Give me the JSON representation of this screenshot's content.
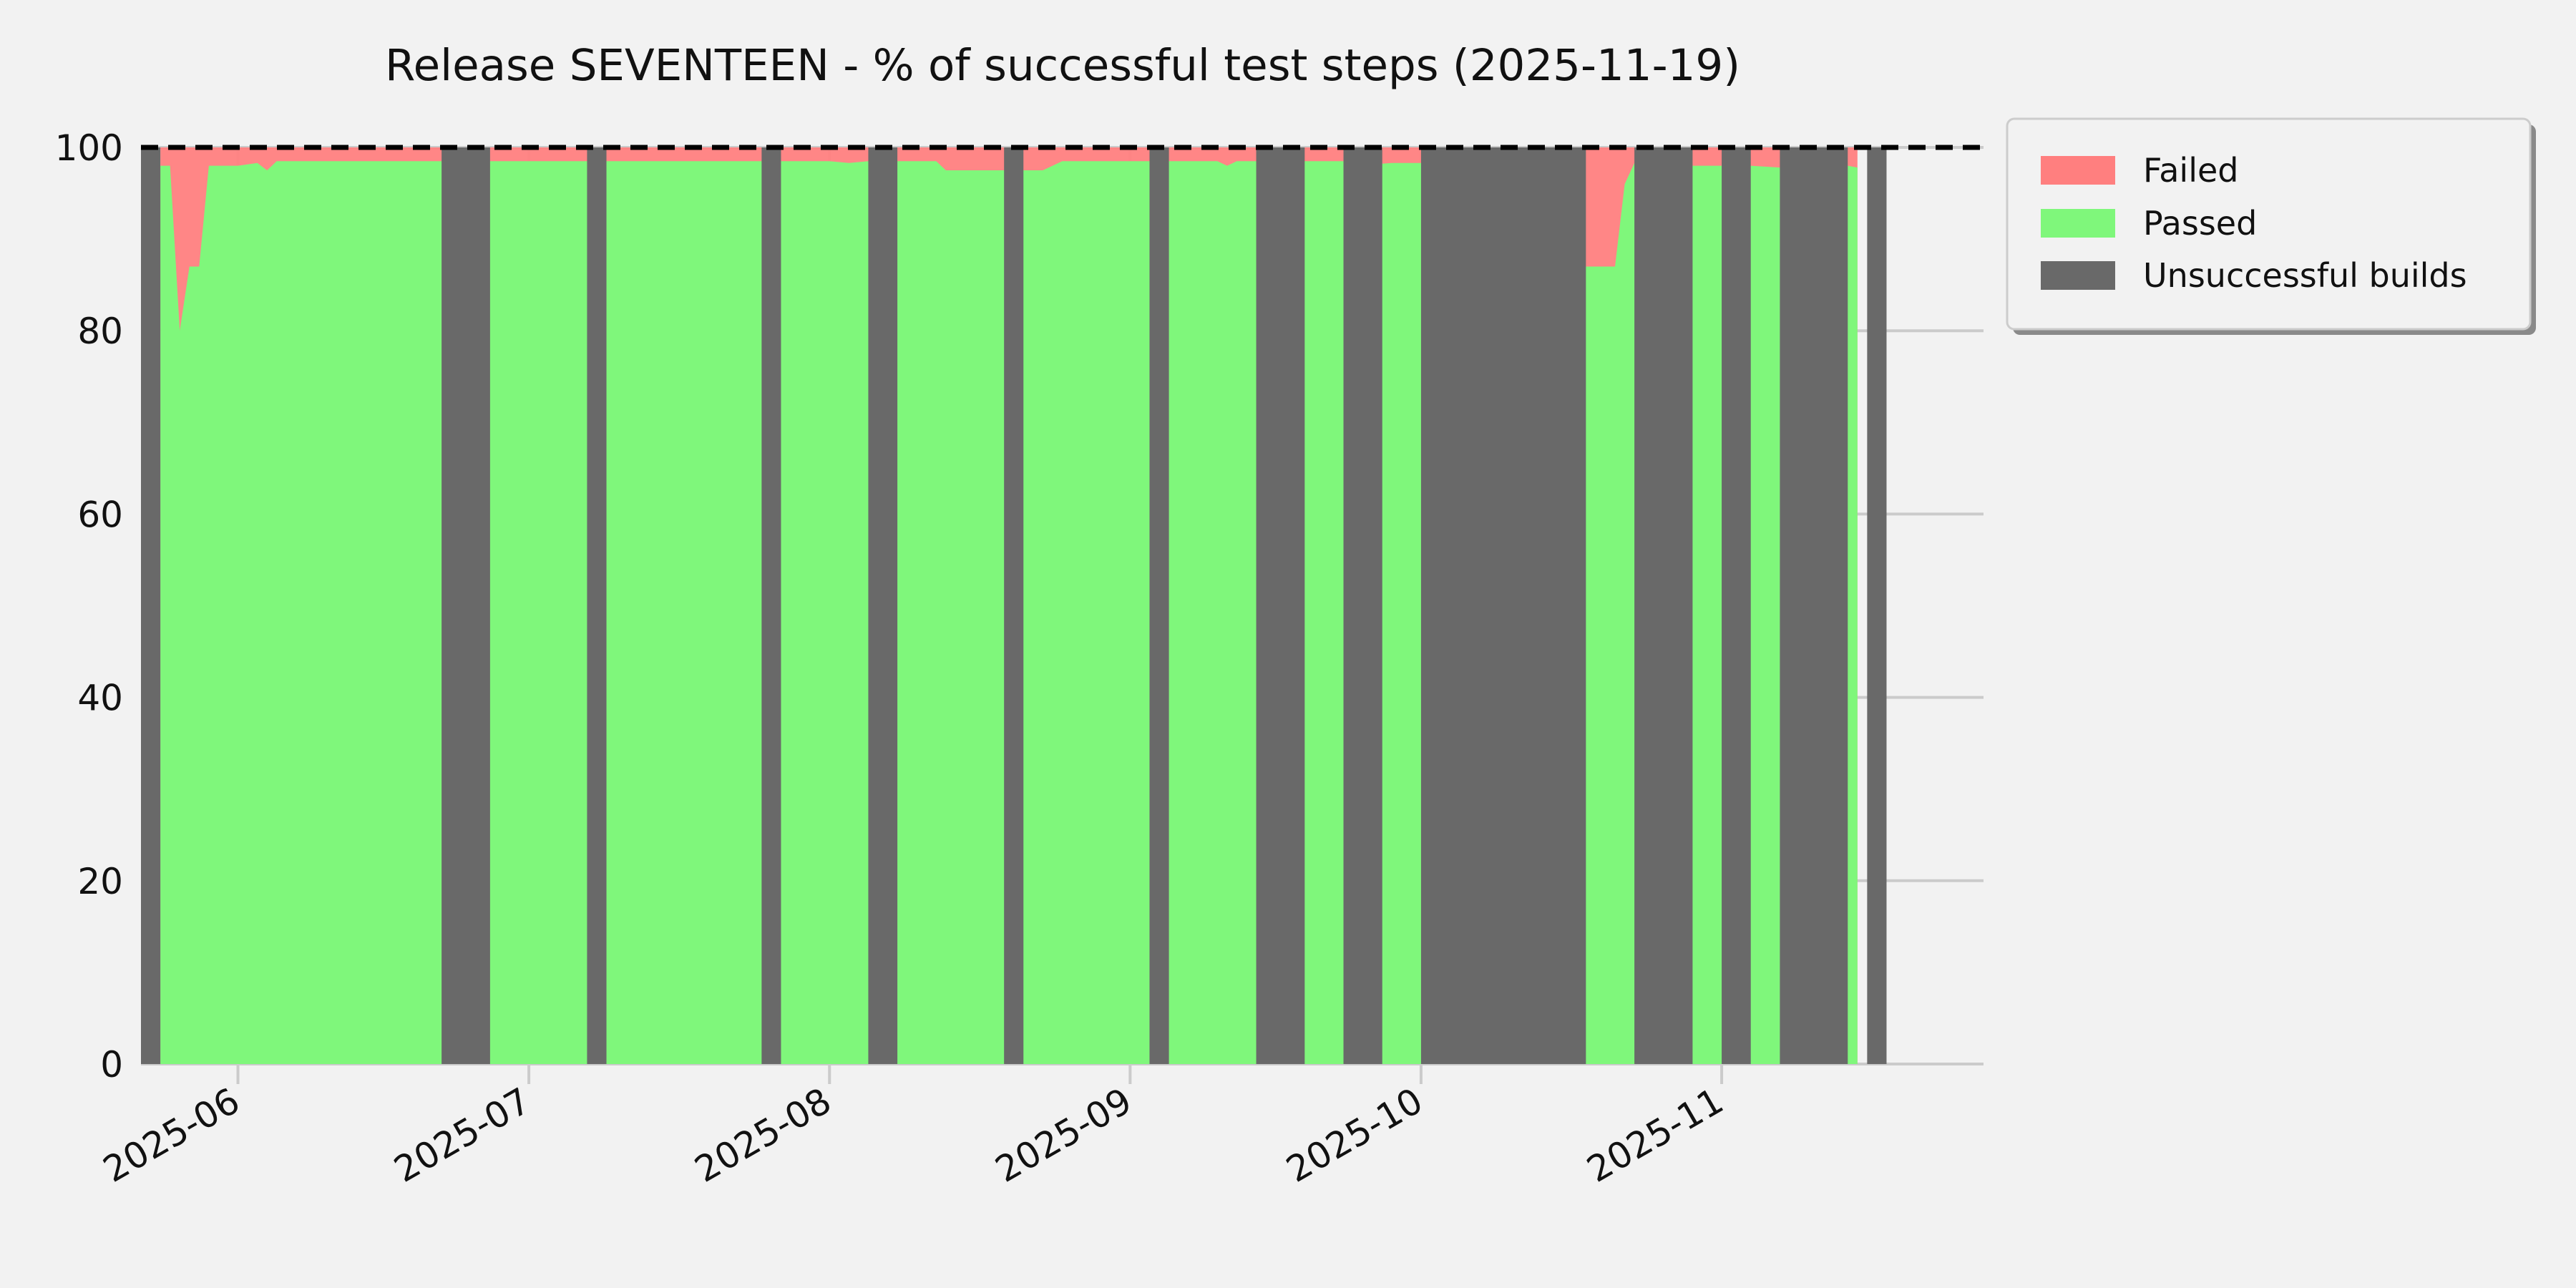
{
  "chart_data": {
    "type": "area",
    "title": "Release SEVENTEEN - % of successful test steps (2025-11-19)",
    "xlabel": "",
    "ylabel": "",
    "x_range": [
      "2025-05-22",
      "2025-11-28"
    ],
    "ylim": [
      0,
      100
    ],
    "yticks": [
      0,
      20,
      40,
      60,
      80,
      100
    ],
    "xticks": [
      "2025-06-01",
      "2025-07-01",
      "2025-08-01",
      "2025-09-01",
      "2025-10-01",
      "2025-11-01"
    ],
    "xtick_labels": [
      "2025-06",
      "2025-07",
      "2025-08",
      "2025-09",
      "2025-10",
      "2025-11"
    ],
    "reference_line": 100,
    "grid": true,
    "legend_position": "outside-top-right",
    "legend": [
      "Failed",
      "Passed",
      "Unsuccessful builds"
    ],
    "colors": {
      "failed": "#ff7f7f",
      "passed": "#7ff77b",
      "unsuccessful": "#696969",
      "background": "#f2f2f2",
      "grid": "#cbcbcb"
    },
    "passed_series": [
      [
        "2025-05-24",
        98
      ],
      [
        "2025-05-25",
        98
      ],
      [
        "2025-05-26",
        80
      ],
      [
        "2025-05-27",
        87
      ],
      [
        "2025-05-28",
        87
      ],
      [
        "2025-05-29",
        98
      ],
      [
        "2025-05-30",
        98
      ],
      [
        "2025-06-01",
        98
      ],
      [
        "2025-06-03",
        98.3
      ],
      [
        "2025-06-04",
        97.5
      ],
      [
        "2025-06-05",
        98.5
      ],
      [
        "2025-06-10",
        98.5
      ],
      [
        "2025-06-20",
        98.5
      ],
      [
        "2025-06-22",
        98.5
      ],
      [
        "2025-06-27",
        98.5
      ],
      [
        "2025-07-06",
        98.5
      ],
      [
        "2025-07-09",
        98.5
      ],
      [
        "2025-07-20",
        98.5
      ],
      [
        "2025-07-25",
        98.5
      ],
      [
        "2025-07-27",
        98.5
      ],
      [
        "2025-08-01",
        98.5
      ],
      [
        "2025-08-03",
        98.3
      ],
      [
        "2025-08-05",
        98.5
      ],
      [
        "2025-08-08",
        98.5
      ],
      [
        "2025-08-12",
        98.5
      ],
      [
        "2025-08-13",
        97.5
      ],
      [
        "2025-08-19",
        97.5
      ],
      [
        "2025-08-21",
        97.5
      ],
      [
        "2025-08-23",
        97.5
      ],
      [
        "2025-08-25",
        98.5
      ],
      [
        "2025-09-03",
        98.5
      ],
      [
        "2025-09-05",
        98.5
      ],
      [
        "2025-09-10",
        98.5
      ],
      [
        "2025-09-11",
        98.0
      ],
      [
        "2025-09-12",
        98.5
      ],
      [
        "2025-09-14",
        98.5
      ],
      [
        "2025-09-20",
        98.5
      ],
      [
        "2025-09-23",
        98.5
      ],
      [
        "2025-09-24",
        98.0
      ],
      [
        "2025-09-28",
        98.3
      ],
      [
        "2025-10-01",
        98.3
      ],
      [
        "2025-10-18",
        87
      ],
      [
        "2025-10-21",
        87
      ],
      [
        "2025-10-22",
        96
      ],
      [
        "2025-10-23",
        98.3
      ],
      [
        "2025-10-29",
        98
      ],
      [
        "2025-11-01",
        98
      ],
      [
        "2025-11-03",
        96
      ],
      [
        "2025-11-04",
        98
      ],
      [
        "2025-11-07",
        97.8
      ],
      [
        "2025-11-14",
        98
      ],
      [
        "2025-11-15",
        97.8
      ]
    ],
    "unsuccessful_builds": [
      [
        "2025-05-22",
        "2025-05-24"
      ],
      [
        "2025-06-22",
        "2025-06-27"
      ],
      [
        "2025-07-07",
        "2025-07-09"
      ],
      [
        "2025-07-25",
        "2025-07-27"
      ],
      [
        "2025-08-05",
        "2025-08-08"
      ],
      [
        "2025-08-19",
        "2025-08-21"
      ],
      [
        "2025-09-03",
        "2025-09-05"
      ],
      [
        "2025-09-14",
        "2025-09-19"
      ],
      [
        "2025-09-23",
        "2025-09-27"
      ],
      [
        "2025-10-01",
        "2025-10-18"
      ],
      [
        "2025-10-23",
        "2025-10-29"
      ],
      [
        "2025-11-01",
        "2025-11-04"
      ],
      [
        "2025-11-07",
        "2025-11-14"
      ],
      [
        "2025-11-16",
        "2025-11-18"
      ]
    ]
  }
}
